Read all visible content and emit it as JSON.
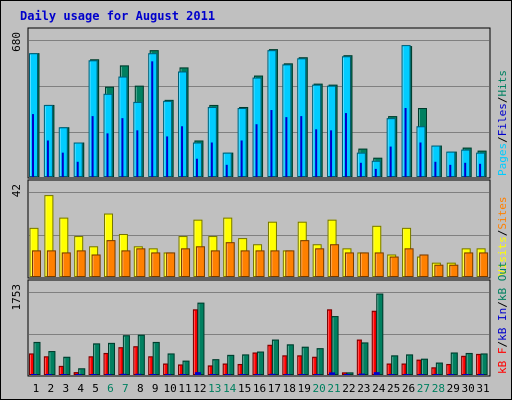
{
  "title": "Daily usage for August 2011",
  "colors": {
    "title": "#0000cc",
    "pages": "#00ccff",
    "files": "#0000cc",
    "hits": "#008060",
    "visits": "#ffff00",
    "sites": "#ff8000",
    "kb_in": "#0000cc",
    "kb_out": "#008060",
    "kb_f": "#ff0000",
    "panel_bg": "#c0c0c0",
    "grid": "#808080"
  },
  "chart_data": [
    {
      "type": "bar",
      "panel": "hits",
      "ymax_label": "680",
      "ymax": 680,
      "series_labels": [
        "Pages",
        "Files",
        "Hits"
      ],
      "series": [
        {
          "name": "Hits",
          "values": [
            610,
            355,
            245,
            170,
            580,
            445,
            550,
            450,
            625,
            380,
            540,
            180,
            355,
            120,
            345,
            500,
            630,
            560,
            590,
            460,
            455,
            600,
            140,
            95,
            300,
            645,
            340,
            155,
            125,
            145,
            130
          ]
        },
        {
          "name": "Files",
          "values": [
            310,
            180,
            120,
            75,
            300,
            215,
            290,
            230,
            570,
            200,
            250,
            90,
            170,
            60,
            180,
            260,
            330,
            295,
            300,
            235,
            230,
            315,
            70,
            40,
            150,
            340,
            170,
            75,
            60,
            70,
            65
          ]
        },
        {
          "name": "Pages",
          "values": [
            610,
            355,
            245,
            170,
            575,
            410,
            495,
            370,
            610,
            375,
            520,
            170,
            345,
            120,
            340,
            490,
            625,
            555,
            585,
            455,
            450,
            595,
            120,
            80,
            290,
            650,
            250,
            155,
            125,
            135,
            120
          ]
        }
      ]
    },
    {
      "type": "bar",
      "panel": "visits",
      "ymax_label": "42",
      "ymax": 42,
      "series_labels": [
        "Visits",
        "Sites"
      ],
      "series": [
        {
          "name": "Visits",
          "values": [
            24,
            40,
            29,
            20,
            15,
            31,
            21,
            15,
            14,
            12,
            20,
            28,
            20,
            29,
            19,
            16,
            27,
            13,
            27,
            16,
            28,
            14,
            12,
            25,
            11,
            24,
            10,
            7,
            7,
            14,
            14
          ]
        },
        {
          "name": "Sites",
          "values": [
            13,
            13,
            12,
            13,
            11,
            18,
            13,
            14,
            12,
            12,
            14,
            15,
            13,
            17,
            13,
            13,
            13,
            13,
            18,
            14,
            16,
            12,
            12,
            12,
            10,
            14,
            11,
            6,
            6,
            12,
            12
          ]
        }
      ]
    },
    {
      "type": "bar",
      "panel": "kbytes",
      "ymax_label": "1753",
      "ymax": 1753,
      "series_labels": [
        "kB F",
        "kB In",
        "kB Out"
      ],
      "series": [
        {
          "name": "kB F",
          "values": [
            450,
            390,
            190,
            60,
            390,
            460,
            580,
            600,
            390,
            240,
            220,
            1370,
            200,
            240,
            230,
            470,
            630,
            410,
            410,
            380,
            1370,
            55,
            740,
            1340,
            240,
            240,
            320,
            160,
            230,
            400,
            440
          ]
        },
        {
          "name": "kB Out",
          "values": [
            690,
            500,
            380,
            140,
            660,
            670,
            830,
            840,
            690,
            450,
            300,
            1510,
            330,
            420,
            430,
            490,
            740,
            640,
            590,
            560,
            1230,
            55,
            680,
            1700,
            410,
            430,
            340,
            260,
            470,
            460,
            450
          ]
        },
        {
          "name": "kB In",
          "values": [
            20,
            20,
            15,
            10,
            20,
            20,
            25,
            25,
            20,
            15,
            15,
            60,
            15,
            15,
            15,
            20,
            25,
            20,
            20,
            20,
            55,
            5,
            30,
            60,
            15,
            15,
            15,
            10,
            15,
            15,
            15
          ]
        }
      ]
    }
  ],
  "x_labels": [
    "1",
    "2",
    "3",
    "4",
    "5",
    "6",
    "7",
    "8",
    "9",
    "10",
    "11",
    "12",
    "13",
    "14",
    "15",
    "16",
    "17",
    "18",
    "19",
    "20",
    "21",
    "22",
    "23",
    "24",
    "25",
    "26",
    "27",
    "28",
    "29",
    "30",
    "31"
  ],
  "weekend_days": [
    6,
    7,
    13,
    14,
    20,
    21,
    27,
    28
  ]
}
